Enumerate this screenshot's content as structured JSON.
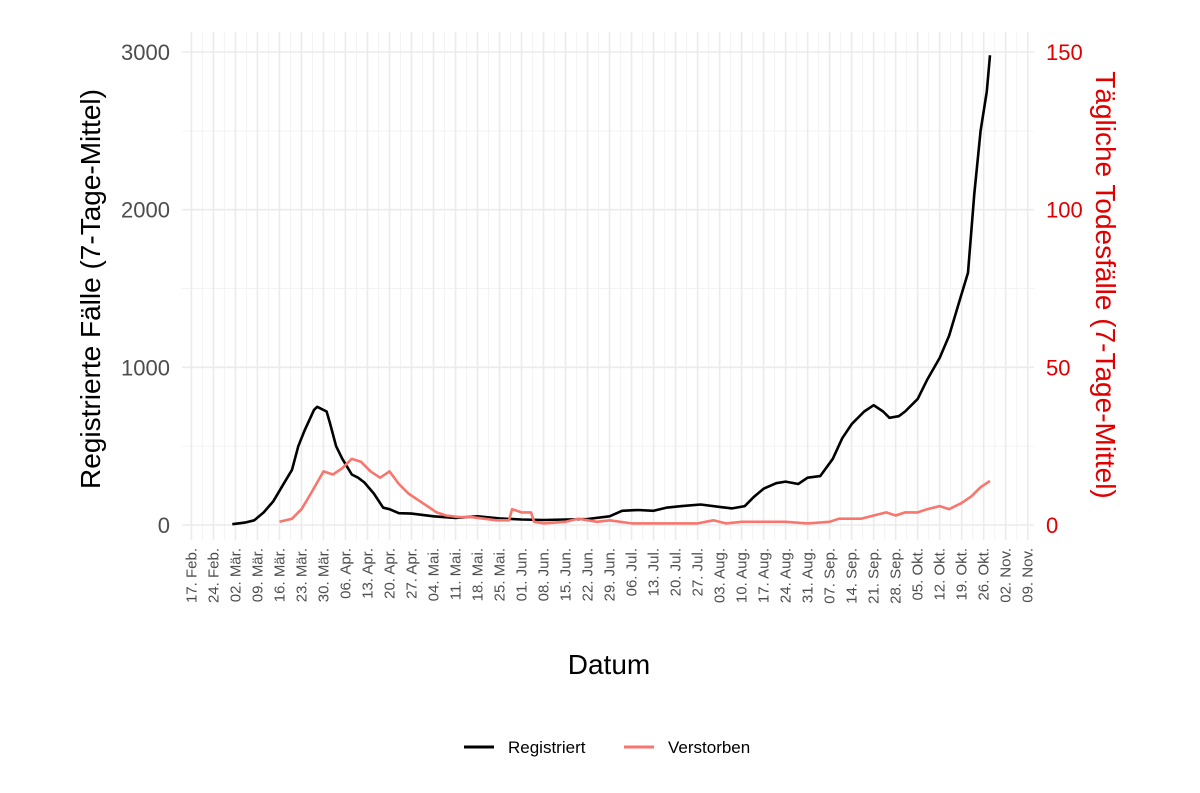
{
  "chart_data": {
    "type": "line",
    "xlabel": "Datum",
    "ylabel_left": "Registrierte Fälle (7-Tage-Mittel)",
    "ylabel_right": "Tägliche Todesfälle (7-Tage-Mittel)",
    "ylim_left": [
      0,
      3000
    ],
    "ylim_right": [
      0,
      150
    ],
    "y_ticks_left": [
      "0",
      "1000",
      "2000",
      "3000"
    ],
    "y_ticks_right": [
      "0",
      "50",
      "100",
      "150"
    ],
    "x_ticks": [
      "17. Feb.",
      "24. Feb.",
      "02. Mär.",
      "09. Mär.",
      "16. Mär.",
      "23. Mär.",
      "30. Mär.",
      "06. Apr.",
      "13. Apr.",
      "20. Apr.",
      "27. Apr.",
      "04. Mai.",
      "11. Mai.",
      "18. Mai.",
      "25. Mai.",
      "01. Jun.",
      "08. Jun.",
      "15. Jun.",
      "22. Jun.",
      "29. Jun.",
      "06. Jul.",
      "13. Jul.",
      "20. Jul.",
      "27. Jul.",
      "03. Aug.",
      "10. Aug.",
      "17. Aug.",
      "24. Aug.",
      "31. Aug.",
      "07. Sep.",
      "14. Sep.",
      "21. Sep.",
      "28. Sep.",
      "05. Okt.",
      "12. Okt.",
      "19. Okt.",
      "26. Okt.",
      "02. Nov.",
      "09. Nov."
    ],
    "x_range": [
      "2020-02-14",
      "2020-11-11"
    ],
    "grid": true,
    "legend_position": "bottom",
    "series": [
      {
        "name": "Registriert",
        "axis": "left",
        "color": "#000000",
        "points": [
          [
            "2020-03-01",
            5
          ],
          [
            "2020-03-05",
            15
          ],
          [
            "2020-03-08",
            30
          ],
          [
            "2020-03-11",
            80
          ],
          [
            "2020-03-14",
            150
          ],
          [
            "2020-03-17",
            250
          ],
          [
            "2020-03-20",
            350
          ],
          [
            "2020-03-22",
            500
          ],
          [
            "2020-03-24",
            600
          ],
          [
            "2020-03-27",
            730
          ],
          [
            "2020-03-28",
            750
          ],
          [
            "2020-03-31",
            720
          ],
          [
            "2020-04-01",
            650
          ],
          [
            "2020-04-03",
            500
          ],
          [
            "2020-04-05",
            420
          ],
          [
            "2020-04-08",
            320
          ],
          [
            "2020-04-10",
            300
          ],
          [
            "2020-04-12",
            270
          ],
          [
            "2020-04-15",
            200
          ],
          [
            "2020-04-18",
            110
          ],
          [
            "2020-04-20",
            100
          ],
          [
            "2020-04-23",
            75
          ],
          [
            "2020-04-27",
            72
          ],
          [
            "2020-05-04",
            55
          ],
          [
            "2020-05-11",
            45
          ],
          [
            "2020-05-18",
            55
          ],
          [
            "2020-05-25",
            42
          ],
          [
            "2020-06-01",
            35
          ],
          [
            "2020-06-08",
            32
          ],
          [
            "2020-06-15",
            35
          ],
          [
            "2020-06-22",
            38
          ],
          [
            "2020-06-29",
            55
          ],
          [
            "2020-07-03",
            90
          ],
          [
            "2020-07-08",
            95
          ],
          [
            "2020-07-13",
            90
          ],
          [
            "2020-07-17",
            110
          ],
          [
            "2020-07-22",
            120
          ],
          [
            "2020-07-28",
            130
          ],
          [
            "2020-08-03",
            115
          ],
          [
            "2020-08-07",
            105
          ],
          [
            "2020-08-11",
            120
          ],
          [
            "2020-08-14",
            180
          ],
          [
            "2020-08-17",
            230
          ],
          [
            "2020-08-21",
            265
          ],
          [
            "2020-08-24",
            275
          ],
          [
            "2020-08-28",
            260
          ],
          [
            "2020-08-31",
            300
          ],
          [
            "2020-09-04",
            310
          ],
          [
            "2020-09-08",
            420
          ],
          [
            "2020-09-11",
            550
          ],
          [
            "2020-09-14",
            640
          ],
          [
            "2020-09-18",
            720
          ],
          [
            "2020-09-21",
            760
          ],
          [
            "2020-09-24",
            720
          ],
          [
            "2020-09-26",
            680
          ],
          [
            "2020-09-29",
            690
          ],
          [
            "2020-10-01",
            720
          ],
          [
            "2020-10-05",
            800
          ],
          [
            "2020-10-08",
            920
          ],
          [
            "2020-10-12",
            1060
          ],
          [
            "2020-10-15",
            1200
          ],
          [
            "2020-10-18",
            1400
          ],
          [
            "2020-10-21",
            1600
          ],
          [
            "2020-10-23",
            2100
          ],
          [
            "2020-10-25",
            2500
          ],
          [
            "2020-10-27",
            2750
          ],
          [
            "2020-10-28",
            2980
          ]
        ]
      },
      {
        "name": "Verstorben",
        "axis": "right",
        "color": "#f8766d",
        "points": [
          [
            "2020-03-16",
            1
          ],
          [
            "2020-03-20",
            2
          ],
          [
            "2020-03-23",
            5
          ],
          [
            "2020-03-26",
            10
          ],
          [
            "2020-03-30",
            17
          ],
          [
            "2020-04-02",
            16
          ],
          [
            "2020-04-05",
            18
          ],
          [
            "2020-04-08",
            21
          ],
          [
            "2020-04-11",
            20
          ],
          [
            "2020-04-14",
            17
          ],
          [
            "2020-04-17",
            15
          ],
          [
            "2020-04-20",
            17
          ],
          [
            "2020-04-23",
            13
          ],
          [
            "2020-04-26",
            10
          ],
          [
            "2020-04-29",
            8
          ],
          [
            "2020-05-02",
            6
          ],
          [
            "2020-05-05",
            4
          ],
          [
            "2020-05-08",
            3
          ],
          [
            "2020-05-12",
            2.5
          ],
          [
            "2020-05-16",
            2.5
          ],
          [
            "2020-05-20",
            2
          ],
          [
            "2020-05-24",
            1.5
          ],
          [
            "2020-05-28",
            1.5
          ],
          [
            "2020-05-29",
            5
          ],
          [
            "2020-06-01",
            4
          ],
          [
            "2020-06-04",
            4
          ],
          [
            "2020-06-05",
            1
          ],
          [
            "2020-06-08",
            0.5
          ],
          [
            "2020-06-15",
            1
          ],
          [
            "2020-06-19",
            2
          ],
          [
            "2020-06-25",
            1
          ],
          [
            "2020-06-29",
            1.5
          ],
          [
            "2020-07-06",
            0.5
          ],
          [
            "2020-07-13",
            0.5
          ],
          [
            "2020-07-20",
            0.5
          ],
          [
            "2020-07-27",
            0.5
          ],
          [
            "2020-08-01",
            1.5
          ],
          [
            "2020-08-05",
            0.5
          ],
          [
            "2020-08-10",
            1
          ],
          [
            "2020-08-16",
            1
          ],
          [
            "2020-08-24",
            1
          ],
          [
            "2020-08-31",
            0.5
          ],
          [
            "2020-09-07",
            1
          ],
          [
            "2020-09-10",
            2
          ],
          [
            "2020-09-14",
            2
          ],
          [
            "2020-09-17",
            2
          ],
          [
            "2020-09-21",
            3
          ],
          [
            "2020-09-25",
            4
          ],
          [
            "2020-09-28",
            3
          ],
          [
            "2020-10-01",
            4
          ],
          [
            "2020-10-05",
            4
          ],
          [
            "2020-10-08",
            5
          ],
          [
            "2020-10-12",
            6
          ],
          [
            "2020-10-15",
            5
          ],
          [
            "2020-10-19",
            7
          ],
          [
            "2020-10-22",
            9
          ],
          [
            "2020-10-25",
            12
          ],
          [
            "2020-10-28",
            14
          ]
        ]
      }
    ]
  }
}
